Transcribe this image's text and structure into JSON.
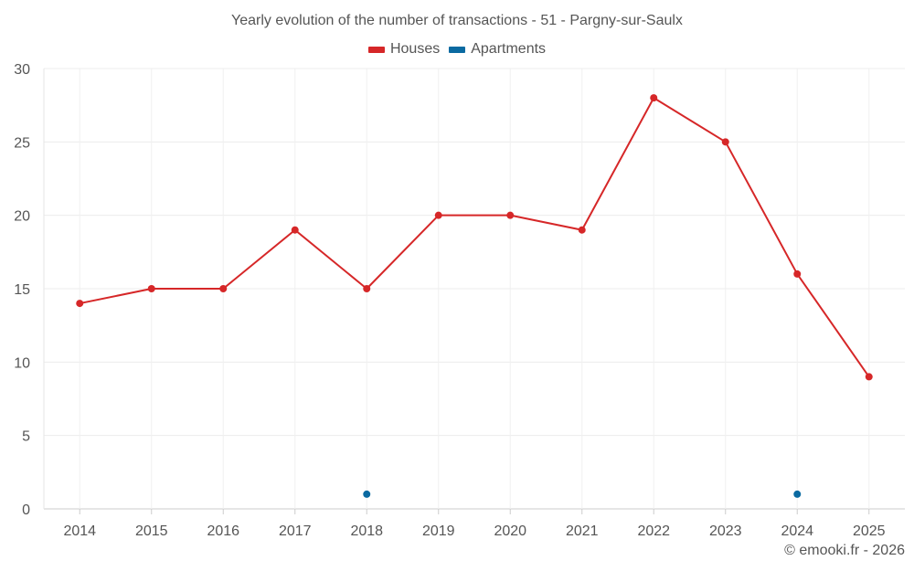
{
  "chart_data": {
    "type": "line",
    "title": "Yearly evolution of the number of transactions - 51 - Pargny-sur-Saulx",
    "xlabel": "",
    "ylabel": "",
    "categories": [
      "2014",
      "2015",
      "2016",
      "2017",
      "2018",
      "2019",
      "2020",
      "2021",
      "2022",
      "2023",
      "2024",
      "2025"
    ],
    "ylim": [
      0,
      30
    ],
    "yticks": [
      0,
      5,
      10,
      15,
      20,
      25,
      30
    ],
    "grid": true,
    "legend_position": "top-center",
    "series": [
      {
        "name": "Houses",
        "color": "#d62728",
        "values": [
          14,
          15,
          15,
          19,
          15,
          20,
          20,
          19,
          28,
          25,
          16,
          9
        ]
      },
      {
        "name": "Apartments",
        "color": "#0a6aa1",
        "values": [
          null,
          null,
          null,
          null,
          1,
          null,
          null,
          null,
          null,
          null,
          1,
          null
        ]
      }
    ]
  },
  "credit": "© emooki.fr - 2026"
}
